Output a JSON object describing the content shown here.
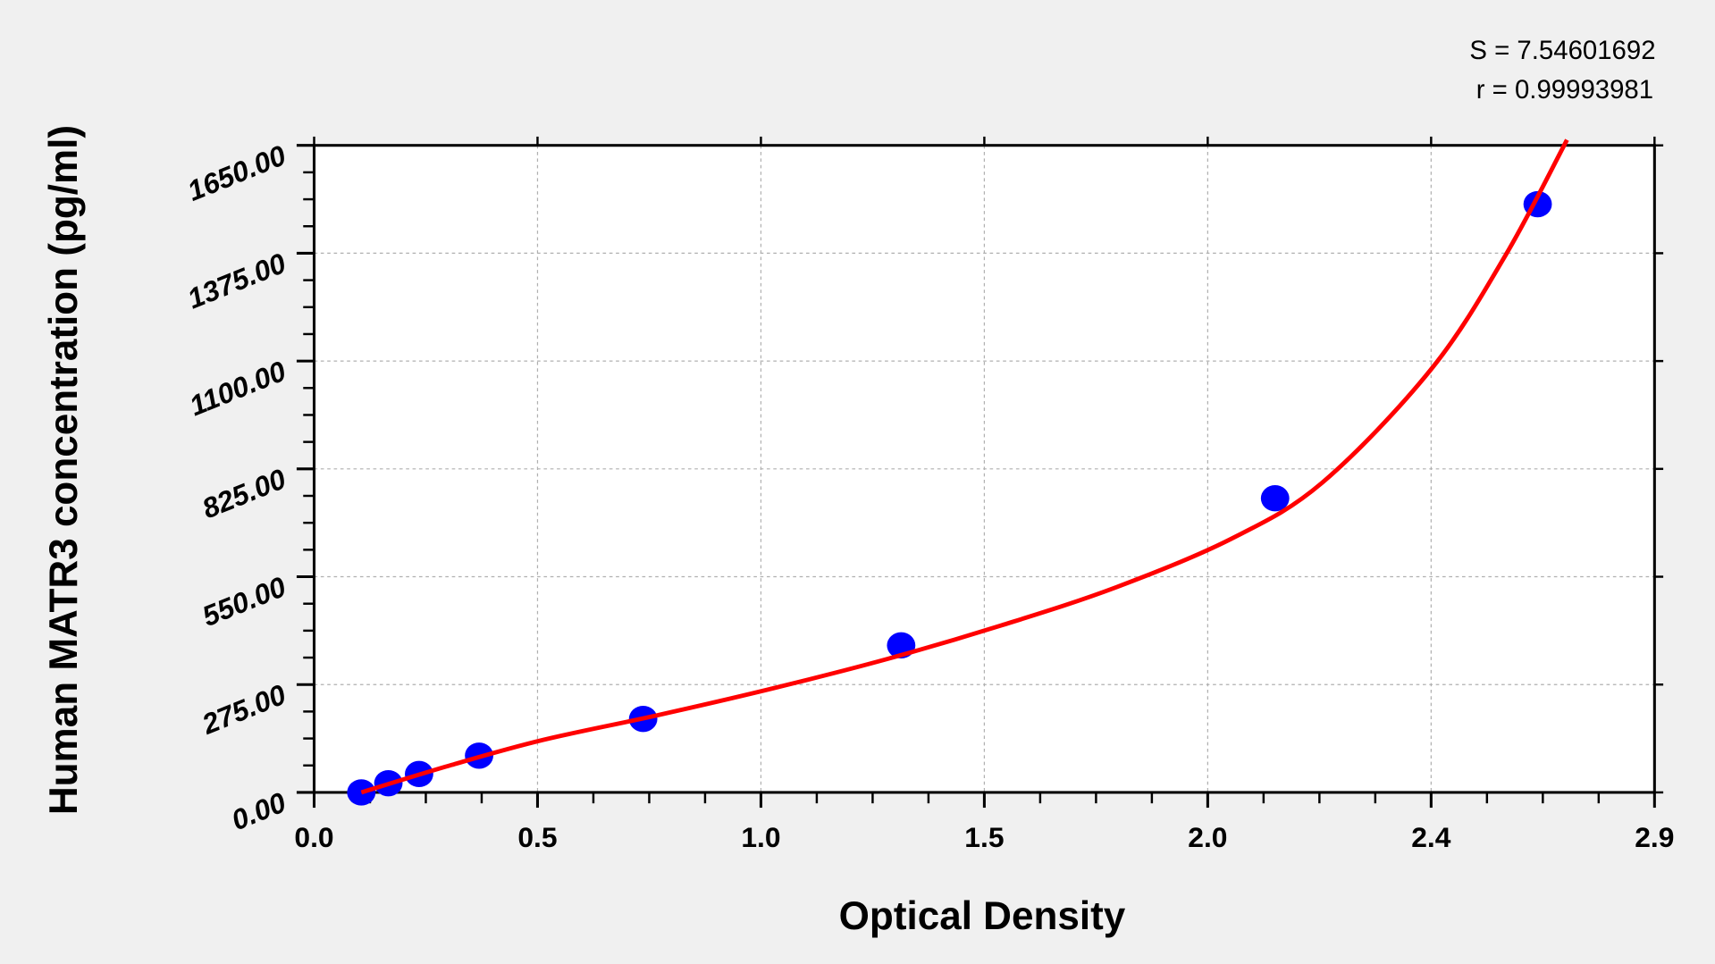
{
  "chart_data": {
    "type": "scatter",
    "xlabel": "Optical Density",
    "ylabel": "Human MATR3 concentration (pg/ml)",
    "xlim": [
      0,
      2.925
    ],
    "ylim": [
      0,
      1650
    ],
    "x_ticks": [
      0,
      0.4875,
      0.975,
      1.4625,
      1.95,
      2.4375,
      2.925
    ],
    "x_tick_labels": [
      "0.0",
      "0.5",
      "1.0",
      "1.5",
      "2.0",
      "2.4",
      "2.9"
    ],
    "y_ticks": [
      0,
      275,
      550,
      825,
      1100,
      1375,
      1650
    ],
    "y_tick_labels": [
      "0.00",
      "275.00",
      "550.00",
      "825.00",
      "1100.00",
      "1375.00",
      "1650.00"
    ],
    "grid": true,
    "points": {
      "color": "#0000ff",
      "x": [
        0.103,
        0.162,
        0.229,
        0.36,
        0.718,
        1.281,
        2.097,
        2.67
      ],
      "y": [
        0,
        23.4,
        46.9,
        93.8,
        187.5,
        375,
        750,
        1500
      ]
    },
    "fit_curve": {
      "color": "#ff0000",
      "x": [
        0.103,
        0.3,
        0.5,
        0.75,
        1.0,
        1.25,
        1.5,
        1.75,
        2.0,
        2.2,
        2.4375,
        2.6,
        2.734
      ],
      "y": [
        0,
        70,
        134,
        197,
        265,
        340,
        426,
        523,
        646,
        790,
        1079,
        1370,
        1664
      ]
    },
    "annotations": [
      "S = 7.54601692",
      "r = 0.99993981"
    ]
  }
}
